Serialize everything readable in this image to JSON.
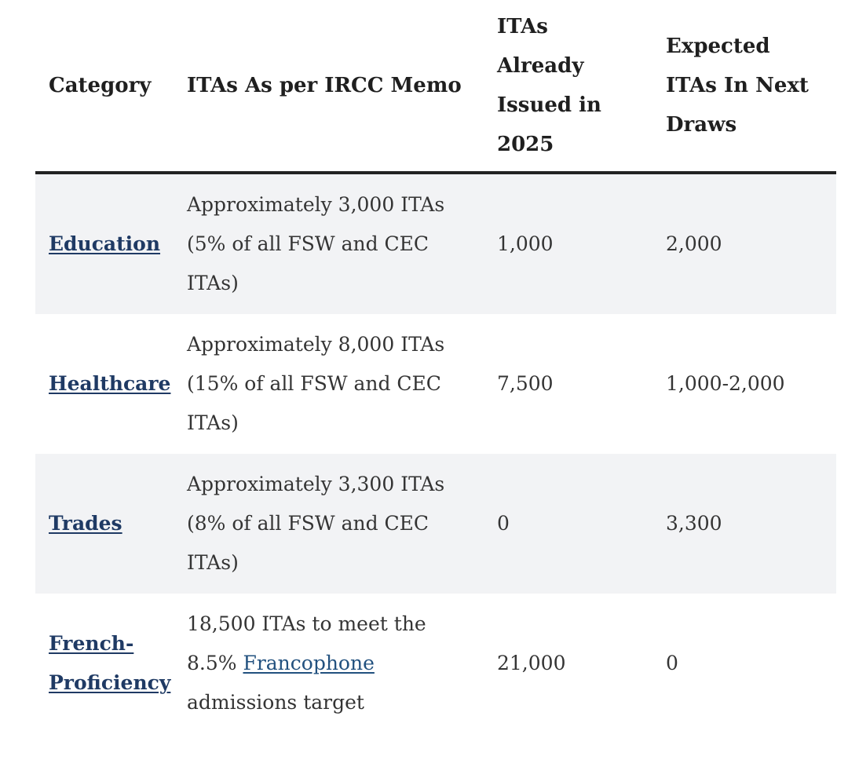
{
  "table": {
    "columns": [
      {
        "id": "category",
        "label": "Category"
      },
      {
        "id": "memo",
        "label": "ITAs As per IRCC Memo"
      },
      {
        "id": "issued",
        "label": "ITAs\nAlready\nIssued in\n2025"
      },
      {
        "id": "expected",
        "label": "Expected\nITAs In Next\nDraws"
      }
    ],
    "rows": [
      {
        "category": "Education",
        "memo_parts": [
          {
            "text": "Approximately 3,000 ITAs (5% of all FSW and CEC ITAs)",
            "link": false
          }
        ],
        "issued_2025": "1,000",
        "expected_next_draws": "2,000"
      },
      {
        "category": "Healthcare",
        "memo_parts": [
          {
            "text": "Approximately 8,000 ITAs (15% of all FSW and CEC ITAs)",
            "link": false
          }
        ],
        "issued_2025": "7,500",
        "expected_next_draws": "1,000-2,000"
      },
      {
        "category": "Trades",
        "memo_parts": [
          {
            "text": "Approximately 3,300 ITAs (8% of all FSW and CEC ITAs)",
            "link": false
          }
        ],
        "issued_2025": "0",
        "expected_next_draws": "3,300"
      },
      {
        "category": "French-Proficiency",
        "memo_parts": [
          {
            "text": "18,500 ITAs to meet the 8.5% ",
            "link": false
          },
          {
            "text": "Francophone",
            "link": true
          },
          {
            "text": " admissions target",
            "link": false
          }
        ],
        "issued_2025": "21,000",
        "expected_next_draws": "0"
      }
    ]
  },
  "colors": {
    "link-bold": "#1f3a64",
    "link-regular": "#22517f",
    "header-text": "#1f1f1f",
    "body-text": "#343434",
    "stripe-bg": "#f2f3f5",
    "header-border": "#222222",
    "page-bg": "#ffffff"
  }
}
